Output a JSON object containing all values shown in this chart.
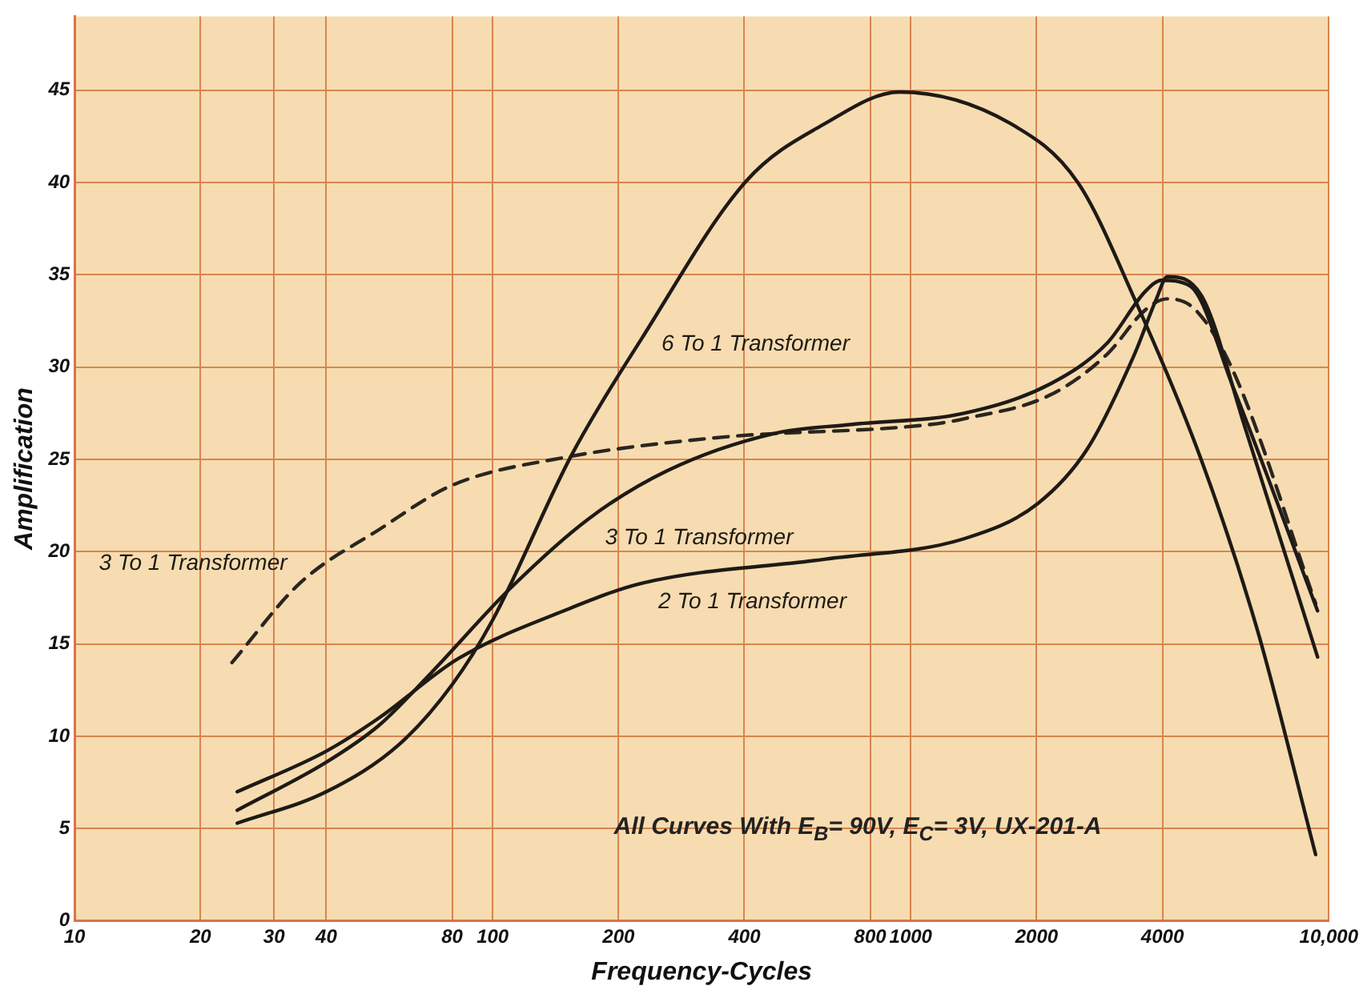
{
  "chart_data": {
    "type": "line",
    "xlabel": "Frequency-Cycles",
    "ylabel": "Amplification",
    "log": "x",
    "xlim": [
      10,
      10000
    ],
    "xticks": [
      10,
      20,
      30,
      40,
      80,
      100,
      200,
      400,
      800,
      1000,
      2000,
      4000,
      {
        "value": 10000,
        "label": "10,000"
      }
    ],
    "ylim": [
      0,
      49
    ],
    "yticks": [
      0,
      5,
      10,
      15,
      20,
      25,
      30,
      35,
      40,
      45
    ],
    "grid": true,
    "legend": false,
    "marker": "none",
    "annotations": [
      "All Curves With E$_{B}$= 90V, E$_{C}$= 3V, UX-201-A"
    ],
    "series": [
      {
        "name": "6 To 1 Transformer",
        "color": "#1e1a16",
        "line_style": "solid",
        "x": [
          24.5,
          40,
          60,
          80,
          100,
          155,
          228,
          405,
          625,
          940,
          1730,
          2510,
          3430,
          4950,
          6760,
          9300
        ],
        "values": [
          5.3,
          7.0,
          9.6,
          12.8,
          16.3,
          25.3,
          31.6,
          40.1,
          43.2,
          44.9,
          43.2,
          40.0,
          33.7,
          25.0,
          15.7,
          3.6
        ]
      },
      {
        "name": "3 To 1 Transformer",
        "color": "#1e1a16",
        "line_style": "solid",
        "x": [
          24.5,
          40,
          53.5,
          71,
          110,
          170,
          262,
          470,
          725,
          1340,
          2160,
          2950,
          3640,
          3980,
          4650,
          5930,
          9400
        ],
        "values": [
          6.0,
          8.6,
          10.6,
          13.4,
          18.0,
          21.8,
          24.4,
          26.4,
          26.9,
          27.5,
          29.1,
          31.3,
          34.1,
          34.7,
          34.4,
          28.8,
          16.8
        ]
      },
      {
        "name": "2 To 1 Transformer",
        "color": "#1e1a16",
        "line_style": "solid",
        "x": [
          24.5,
          40,
          53.5,
          82.6,
          148,
          228,
          625,
          1340,
          2010,
          2650,
          3430,
          3870,
          4110,
          4950,
          6330,
          9400
        ],
        "values": [
          7.0,
          9.2,
          11.0,
          14.2,
          16.8,
          18.3,
          19.6,
          20.7,
          22.6,
          25.6,
          30.7,
          33.7,
          34.9,
          33.9,
          26.6,
          14.3
        ]
      },
      {
        "name": "3 To 1 Transformer",
        "color": "#2a2520",
        "line_style": "dashed",
        "x": [
          23.8,
          34.6,
          53.5,
          80,
          148,
          352,
          1120,
          1340,
          2160,
          2950,
          3640,
          4110,
          4800,
          5930,
          9300
        ],
        "values": [
          14.0,
          18.3,
          21.2,
          23.6,
          25.1,
          26.2,
          26.9,
          27.2,
          28.5,
          30.7,
          33.1,
          33.7,
          33.1,
          29.7,
          17.2
        ]
      }
    ]
  }
}
